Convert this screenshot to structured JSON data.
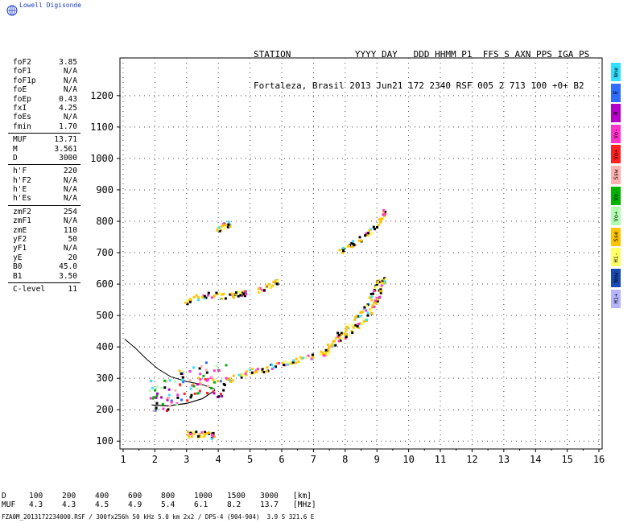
{
  "brand": "Lowell Digisonde",
  "header": {
    "line1": "STATION            YYYY DAY   DDD HHMM P1  FFS S AXN PPS IGA PS",
    "line2": "Fortaleza, Brasil 2013 Jun21 172 2340 RSF 005 2 713 100 +0+ B2"
  },
  "params": [
    [
      {
        "k": "foF2",
        "v": "3.85"
      },
      {
        "k": "foF1",
        "v": "N/A"
      },
      {
        "k": "foF1p",
        "v": "N/A"
      },
      {
        "k": "foE",
        "v": "N/A"
      },
      {
        "k": "foEp",
        "v": "0.43"
      },
      {
        "k": "fxI",
        "v": "4.25"
      },
      {
        "k": "foEs",
        "v": "N/A"
      },
      {
        "k": "fmin",
        "v": "1.70"
      }
    ],
    [
      {
        "k": "MUF",
        "v": "13.71"
      },
      {
        "k": "M",
        "v": "3.561"
      },
      {
        "k": "D",
        "v": "3000"
      }
    ],
    [
      {
        "k": "h'F",
        "v": "220"
      },
      {
        "k": "h'F2",
        "v": "N/A"
      },
      {
        "k": "h'E",
        "v": "N/A"
      },
      {
        "k": "h'Es",
        "v": "N/A"
      }
    ],
    [
      {
        "k": "zmF2",
        "v": "254"
      },
      {
        "k": "zmF1",
        "v": "N/A"
      },
      {
        "k": "zmE",
        "v": "110"
      },
      {
        "k": "yF2",
        "v": "50"
      },
      {
        "k": "yF1",
        "v": "N/A"
      },
      {
        "k": "yE",
        "v": "20"
      },
      {
        "k": "B0",
        "v": "45.0"
      },
      {
        "k": "B1",
        "v": "3.50"
      }
    ],
    [
      {
        "k": "C-level",
        "v": "11"
      }
    ]
  ],
  "legend": [
    {
      "label": "Nne",
      "color": "#33e0ff"
    },
    {
      "label": "E",
      "color": "#2f6bff"
    },
    {
      "label": "W",
      "color": "#b400c8"
    },
    {
      "label": "Vo-",
      "color": "#ff33cc"
    },
    {
      "label": "Vo+",
      "color": "#ff2020"
    },
    {
      "label": "Ssw",
      "color": "#ffb0b0"
    },
    {
      "label": "Vo-",
      "color": "#00b400"
    },
    {
      "label": "Vo+",
      "color": "#b0ffb0"
    },
    {
      "label": "Sse",
      "color": "#ffc400"
    },
    {
      "label": "Hi-",
      "color": "#ffff66"
    },
    {
      "label": "Nnw",
      "color": "#1a4ab4"
    },
    {
      "label": "Hi+",
      "color": "#b4b4ff"
    }
  ],
  "dtable": {
    "d_label": "D",
    "d_values": [
      "100",
      "200",
      "400",
      "600",
      "800",
      "1000",
      "1500",
      "3000"
    ],
    "d_unit": "[km]",
    "muf_label": "MUF",
    "muf_values": [
      "4.3",
      "4.3",
      "4.5",
      "4.9",
      "5.4",
      "6.1",
      "8.2",
      "13.7"
    ],
    "muf_unit": "[MHz]"
  },
  "footer": "FZA0M_2013172234000.RSF / 300fx256h 50 kHz 5.0 km 2x2 / DPS-4 (904-904)  3.9 S 321.6 E",
  "chart_data": {
    "type": "scatter",
    "xlabel": "",
    "ylabel": "",
    "xlim": [
      0.9,
      16.1
    ],
    "ylim": [
      75,
      1320
    ],
    "x_ticks": [
      1,
      2,
      3,
      4,
      5,
      6,
      7,
      8,
      9,
      10,
      11,
      12,
      13,
      14,
      15,
      16
    ],
    "y_ticks": [
      100,
      200,
      300,
      400,
      500,
      600,
      700,
      800,
      900,
      1000,
      1100,
      1200
    ],
    "grid": "dotted",
    "profile_curve": [
      [
        1.05,
        425
      ],
      [
        1.4,
        395
      ],
      [
        1.75,
        360
      ],
      [
        2.1,
        330
      ],
      [
        2.5,
        305
      ],
      [
        3.0,
        290
      ],
      [
        3.5,
        280
      ],
      [
        3.9,
        265
      ]
    ],
    "lower_curve": [
      [
        1.9,
        215
      ],
      [
        2.4,
        212
      ],
      [
        3.0,
        220
      ],
      [
        3.5,
        235
      ],
      [
        3.9,
        262
      ]
    ],
    "traces": [
      {
        "name": "F1",
        "x": [
          1.8,
          2.2,
          2.6,
          3.0,
          3.4,
          3.8,
          4.2,
          4.6,
          5.0,
          5.4,
          5.8,
          6.2,
          6.6,
          7.0,
          7.4
        ],
        "y": [
          245,
          250,
          268,
          285,
          305,
          300,
          298,
          310,
          325,
          330,
          345,
          355,
          365,
          375,
          388
        ]
      },
      {
        "name": "F2",
        "x": [
          7.4,
          7.7,
          8.0,
          8.3,
          8.6,
          8.8,
          9.0,
          9.1,
          9.2
        ],
        "y": [
          405,
          420,
          440,
          465,
          490,
          520,
          555,
          585,
          615
        ]
      },
      {
        "name": "F2-upper",
        "x": [
          7.7,
          8.0,
          8.3,
          8.6,
          8.8,
          9.0
        ],
        "y": [
          440,
          460,
          490,
          530,
          565,
          610
        ]
      },
      {
        "name": "2F1",
        "x": [
          2.9,
          3.3,
          3.7,
          4.1,
          4.5,
          4.8
        ],
        "y": [
          545,
          560,
          570,
          565,
          570,
          575
        ]
      },
      {
        "name": "2F1b",
        "x": [
          5.2,
          5.5,
          5.8
        ],
        "y": [
          580,
          595,
          610
        ]
      },
      {
        "name": "2F2",
        "x": [
          7.8,
          8.1,
          8.4,
          8.7,
          9.0,
          9.2
        ],
        "y": [
          705,
          725,
          745,
          765,
          790,
          830
        ]
      },
      {
        "name": "E",
        "x": [
          2.9,
          3.2,
          3.5,
          3.8
        ],
        "y": [
          125,
          125,
          125,
          120
        ]
      },
      {
        "name": "2E",
        "x": [
          3.9,
          4.1,
          4.3
        ],
        "y": [
          775,
          785,
          795
        ]
      }
    ]
  }
}
